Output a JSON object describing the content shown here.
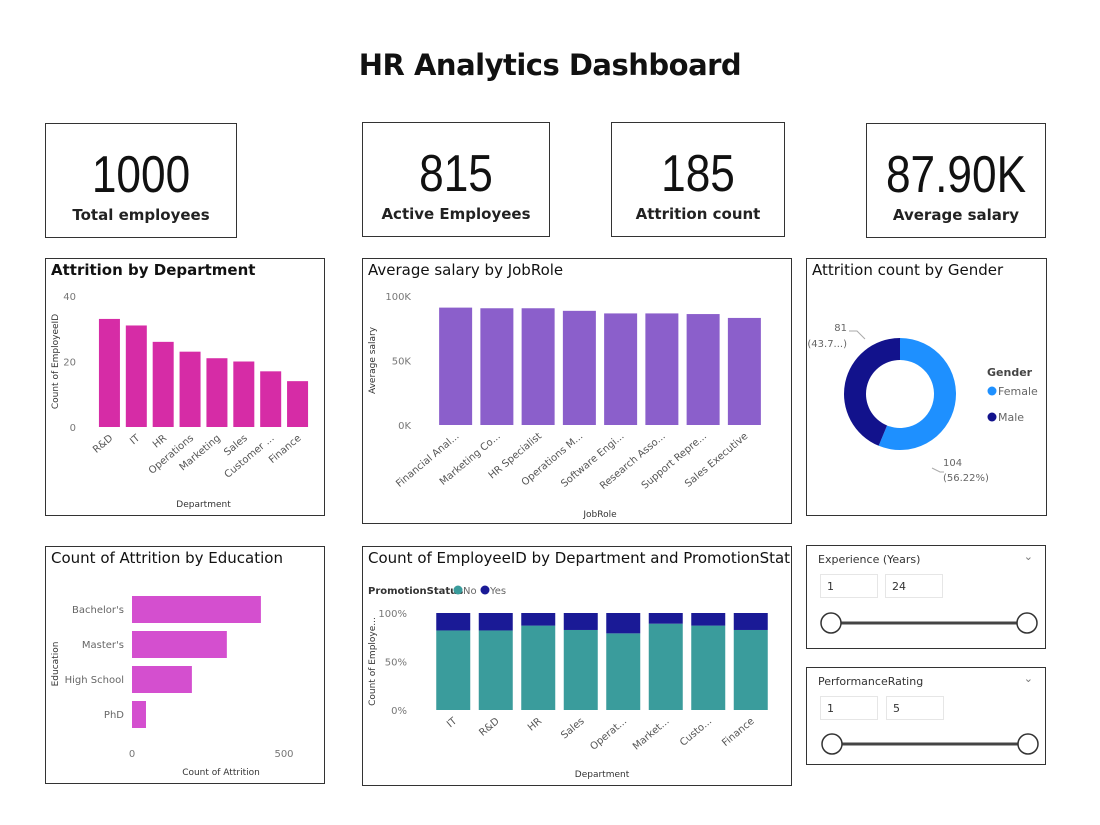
{
  "title": "HR Analytics Dashboard",
  "kpis": [
    {
      "value": "1000",
      "label": "Total employees"
    },
    {
      "value": "815",
      "label": "Active Employees"
    },
    {
      "value": "185",
      "label": "Attrition count"
    },
    {
      "value": "87.90K",
      "label": "Average salary"
    }
  ],
  "colors": {
    "magenta": "#d62ca6",
    "purple": "#8b5fcb",
    "orchid": "#d44fcf",
    "teal": "#3a9c9c",
    "navy": "#1a1a96",
    "female": "#1e90ff",
    "male": "#12128c"
  },
  "chart_data": [
    {
      "type": "bar",
      "title": "Attrition by Department",
      "xlabel": "Department",
      "ylabel": "Count of EmployeeID",
      "categories": [
        "R&D",
        "IT",
        "HR",
        "Operations",
        "Marketing",
        "Sales",
        "Customer ...",
        "Finance"
      ],
      "values": [
        33,
        31,
        26,
        23,
        21,
        20,
        17,
        14
      ],
      "ylim": [
        0,
        40
      ],
      "yticks": [
        "0",
        "20",
        "40"
      ],
      "ytick_values": [
        0,
        20,
        40
      ],
      "color": "#d62ca6"
    },
    {
      "type": "bar",
      "title": "Average salary by JobRole",
      "xlabel": "JobRole",
      "ylabel": "Average salary",
      "categories": [
        "Financial Anal...",
        "Marketing Co...",
        "HR Specialist",
        "Operations M...",
        "Software Engi...",
        "Research Asso...",
        "Support Repre...",
        "Sales Executive"
      ],
      "values": [
        91000,
        90500,
        90500,
        88500,
        86500,
        86500,
        86000,
        83000
      ],
      "ylim": [
        0,
        100000
      ],
      "yticks": [
        "0K",
        "50K",
        "100K"
      ],
      "ytick_values": [
        0,
        50000,
        100000
      ],
      "color": "#8b5fcb"
    },
    {
      "type": "pie",
      "title": "Attrition count by Gender",
      "legend_title": "Gender",
      "legend_position": "right",
      "slices": [
        {
          "name": "Female",
          "value": 104,
          "label": "104",
          "pct_label": "(56.22%)",
          "color": "#1e90ff"
        },
        {
          "name": "Male",
          "value": 81,
          "label": "81",
          "pct_label": "(43.7...)",
          "color": "#12128c"
        }
      ]
    },
    {
      "type": "bar",
      "orientation": "horizontal",
      "title": "Count of Attrition by Education",
      "xlabel": "Count of Attrition",
      "ylabel": "Education",
      "categories": [
        "Bachelor's",
        "Master's",
        "High School",
        "PhD"
      ],
      "values": [
        424,
        312,
        197,
        46
      ],
      "xlim": [
        0,
        500
      ],
      "xticks": [
        "0",
        "500"
      ],
      "xtick_values": [
        0,
        500
      ],
      "color": "#d44fcf"
    },
    {
      "type": "bar",
      "stacked": "100%",
      "title": "Count of EmployeeID by Department and PromotionStatus",
      "legend_title": "PromotionStatus",
      "legend_position": "top-left",
      "xlabel": "Department",
      "ylabel": "Count of Employe...",
      "categories": [
        "IT",
        "R&D",
        "HR",
        "Sales",
        "Operat...",
        "Market...",
        "Custo...",
        "Finance"
      ],
      "series": [
        {
          "name": "No",
          "color": "#3a9c9c",
          "values": [
            82,
            82,
            87,
            82.5,
            79,
            89,
            87,
            82.5
          ]
        },
        {
          "name": "Yes",
          "color": "#1a1a96",
          "values": [
            18,
            18,
            13,
            17.5,
            21,
            11,
            13,
            17.5
          ]
        }
      ],
      "ylim": [
        0,
        100
      ],
      "yticks": [
        "0%",
        "50%",
        "100%"
      ],
      "ytick_values": [
        0,
        50,
        100
      ]
    }
  ],
  "slicers": [
    {
      "title": "Experience (Years)",
      "min": "1",
      "max": "24",
      "range_fraction": [
        0,
        1
      ]
    },
    {
      "title": "PerformanceRating",
      "min": "1",
      "max": "5",
      "range_fraction": [
        0,
        1
      ]
    }
  ],
  "icons": {
    "slicer_menu": "chevron-down-icon"
  }
}
